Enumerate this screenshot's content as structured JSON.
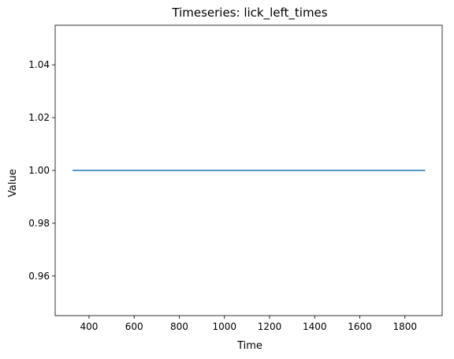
{
  "chart_data": {
    "type": "line",
    "title": "Timeseries: lick_left_times",
    "xlabel": "Time",
    "ylabel": "Value",
    "xlim": [
      250,
      1965
    ],
    "ylim": [
      0.945,
      1.055
    ],
    "xticks": [
      400,
      600,
      800,
      1000,
      1200,
      1400,
      1600,
      1800
    ],
    "yticks": [
      0.96,
      0.98,
      1.0,
      1.02,
      1.04
    ],
    "xtick_labels": [
      "400",
      "600",
      "800",
      "1000",
      "1200",
      "1400",
      "1600",
      "1800"
    ],
    "ytick_labels": [
      "0.96",
      "0.98",
      "1.00",
      "1.02",
      "1.04"
    ],
    "grid": false,
    "series": [
      {
        "name": "lick_left_times",
        "color": "#1f77b4",
        "x": [
          327,
          1890
        ],
        "y": [
          1.0,
          1.0
        ]
      }
    ]
  }
}
